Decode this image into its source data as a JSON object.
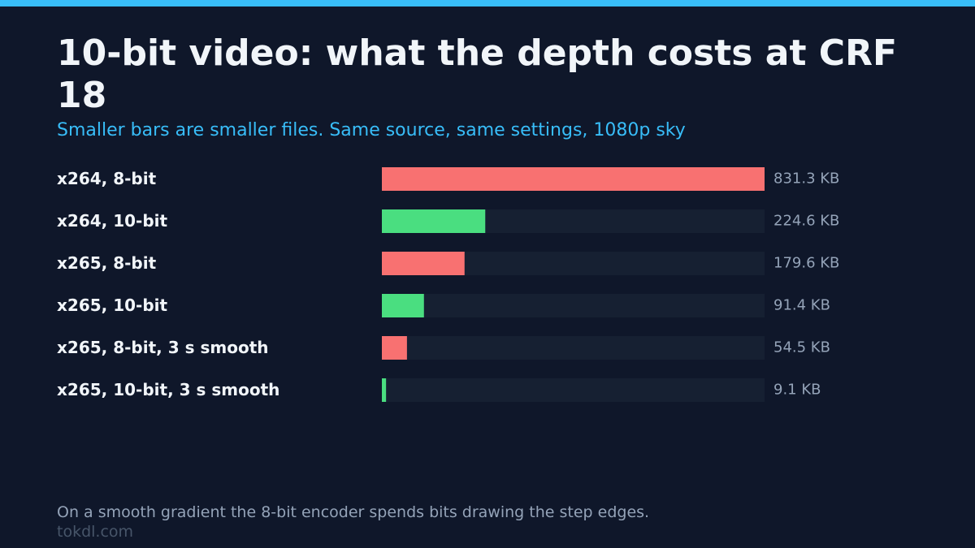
{
  "chart_data": {
    "type": "bar",
    "orientation": "horizontal",
    "title": "10-bit video: what the depth costs at CRF 18",
    "subtitle": "Smaller bars are smaller files. Same source, same settings, 1080p sky",
    "categories": [
      "x264, 8-bit",
      "x264, 10-bit",
      "x265, 8-bit",
      "x265, 10-bit",
      "x265, 8-bit, 3 s smooth",
      "x265, 10-bit, 3 s smooth"
    ],
    "values": [
      831.3,
      224.6,
      179.6,
      91.4,
      54.5,
      9.1
    ],
    "value_labels": [
      "831.3 KB",
      "224.6 KB",
      "179.6 KB",
      "91.4 KB",
      "54.5 KB",
      "9.1 KB"
    ],
    "colors": [
      "#f87171",
      "#4ade80",
      "#f87171",
      "#4ade80",
      "#f87171",
      "#4ade80"
    ],
    "note": "On a smooth gradient the 8-bit encoder spends bits drawing the step edges.",
    "source": "tokdl.com"
  }
}
